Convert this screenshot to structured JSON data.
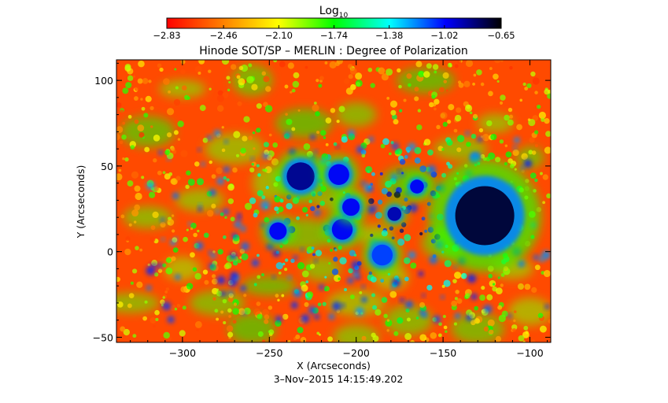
{
  "chart_data": {
    "type": "heatmap",
    "title": "Hinode SOT/SP – MERLIN : Degree of Polarization",
    "xlabel": "X (Arcseconds)",
    "ylabel": "Y (Arcseconds)",
    "xlim": [
      -338,
      -88
    ],
    "ylim": [
      -53,
      112
    ],
    "x_ticks": [
      -300,
      -250,
      -200,
      -150,
      -100
    ],
    "y_ticks": [
      -50,
      0,
      50,
      100
    ],
    "x_tick_labels": [
      "−300",
      "−250",
      "−200",
      "−150",
      "−100"
    ],
    "y_tick_labels": [
      "−50",
      "0",
      "50",
      "100"
    ],
    "timestamp": "3–Nov–2015 14:15:49.202",
    "colorbar": {
      "label_main": "Log",
      "label_sub": "10",
      "range": [
        -2.83,
        -0.65
      ],
      "ticks": [
        -2.83,
        -2.46,
        -2.1,
        -1.74,
        -1.38,
        -1.02,
        -0.65
      ],
      "tick_labels": [
        "−2.83",
        "−2.46",
        "−2.10",
        "−1.74",
        "−1.38",
        "−1.02",
        "−0.65"
      ],
      "colors": [
        "#ff0000",
        "#ff7f00",
        "#ffff00",
        "#00ff00",
        "#00ffff",
        "#0000ff",
        "#000000"
      ]
    },
    "features": [
      {
        "name": "large sunspot",
        "x": -126,
        "y": 21,
        "r": 17,
        "value": -0.72
      },
      {
        "name": "spot",
        "x": -232,
        "y": 44,
        "r": 8,
        "value": -0.85
      },
      {
        "name": "spot",
        "x": -210,
        "y": 45,
        "r": 6,
        "value": -1.0
      },
      {
        "name": "spot",
        "x": -178,
        "y": 22,
        "r": 4,
        "value": -0.9
      },
      {
        "name": "spot",
        "x": -208,
        "y": 13,
        "r": 6,
        "value": -1.0
      },
      {
        "name": "spot",
        "x": -245,
        "y": 12,
        "r": 5,
        "value": -1.0
      },
      {
        "name": "spot",
        "x": -203,
        "y": 26,
        "r": 5,
        "value": -1.0
      },
      {
        "name": "spot",
        "x": -185,
        "y": -2,
        "r": 6,
        "value": -1.1
      },
      {
        "name": "spot",
        "x": -165,
        "y": 38,
        "r": 4,
        "value": -1.0
      }
    ]
  }
}
